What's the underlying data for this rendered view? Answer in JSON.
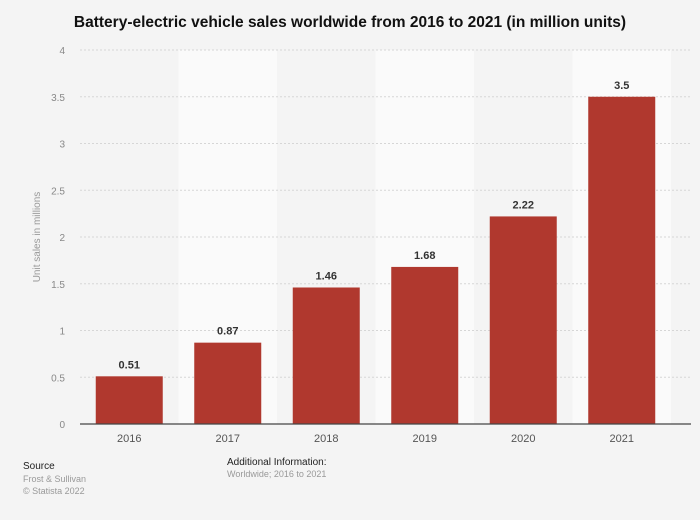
{
  "chart_data": {
    "type": "bar",
    "title": "Battery-electric vehicle sales worldwide from 2016 to 2021 (in million units)",
    "xlabel": "",
    "ylabel": "Unit sales in millions",
    "categories": [
      "2016",
      "2017",
      "2018",
      "2019",
      "2020",
      "2021"
    ],
    "values": [
      0.51,
      0.87,
      1.46,
      1.68,
      2.22,
      3.5
    ],
    "data_labels": [
      "0.51",
      "0.87",
      "1.46",
      "1.68",
      "2.22",
      "3.5"
    ],
    "ylim": [
      0,
      4
    ],
    "yticks": [
      "0",
      "0.5",
      "1",
      "1.5",
      "2",
      "2.5",
      "3",
      "3.5",
      "4"
    ],
    "grid": true,
    "bar_color": "#b0382e"
  },
  "footer": {
    "source_heading": "Source",
    "source": "Frost & Sullivan",
    "copyright": "© Statista 2022",
    "additional_heading": "Additional Information:",
    "additional": "Worldwide; 2016 to 2021"
  }
}
